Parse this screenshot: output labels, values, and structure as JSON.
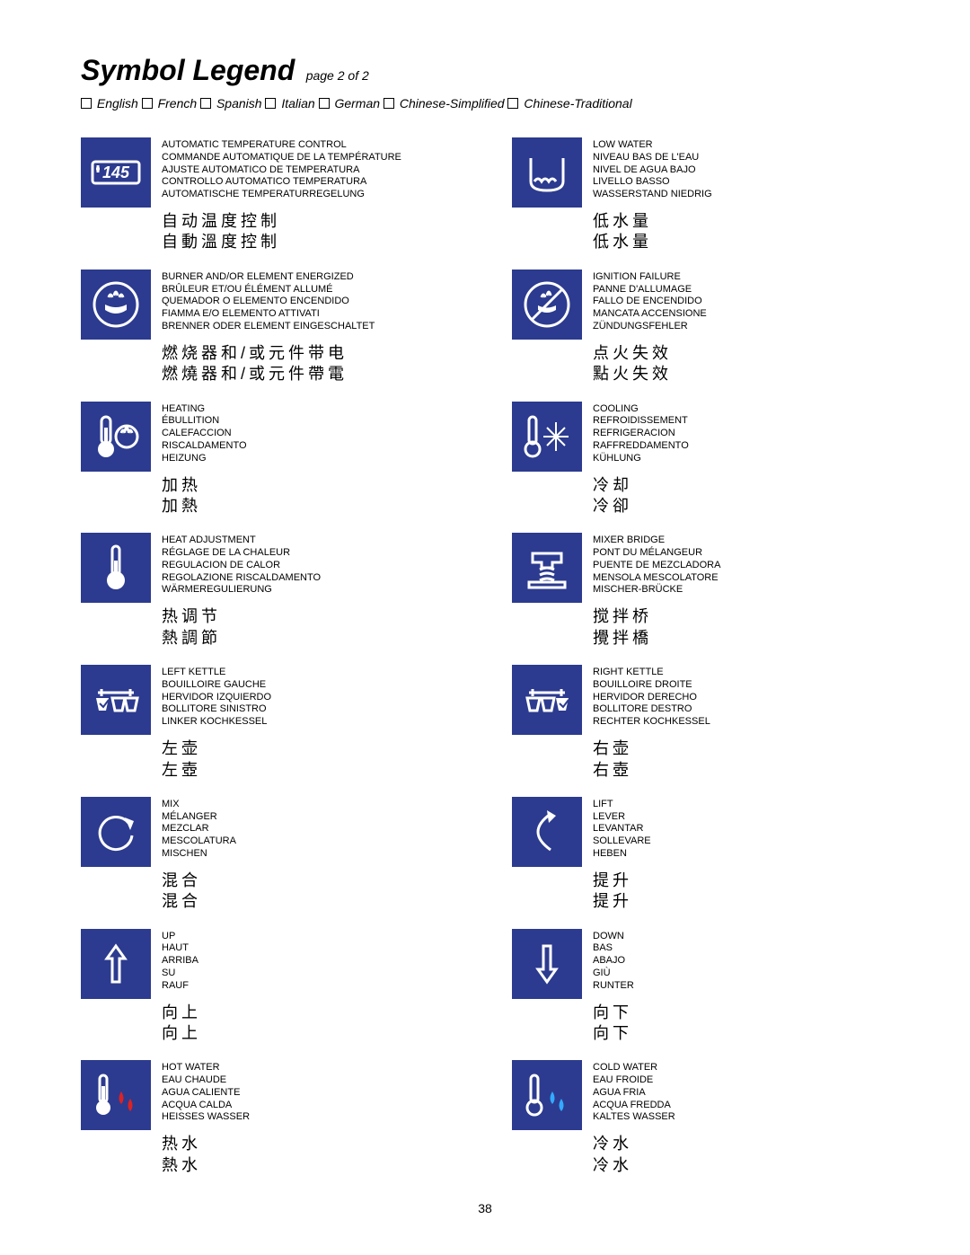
{
  "header": {
    "title": "Symbol Legend",
    "page_indicator": "page 2  of 2",
    "languages": [
      "English",
      "French",
      "Spanish",
      "Italian",
      "German",
      "Chinese-Simplified",
      "Chinese-Traditional"
    ]
  },
  "page_number": "38",
  "colors": {
    "icon_bg": "#2c3b8f",
    "icon_fg": "#ffffff",
    "text": "#000000"
  },
  "left": [
    {
      "icon": "temp-145",
      "langs": [
        "AUTOMATIC TEMPERATURE CONTROL",
        "COMMANDE AUTOMATIQUE DE LA TEMPÉRATURE",
        "AJUSTE AUTOMATICO DE TEMPERATURA",
        "CONTROLLO AUTOMATICO TEMPERATURA",
        "AUTOMATISCHE TEMPERATURREGELUNG"
      ],
      "zh_s": "自动温度控制",
      "zh_t": "自動溫度控制"
    },
    {
      "icon": "burner-on",
      "langs": [
        "BURNER AND/OR ELEMENT ENERGIZED",
        "BRÛLEUR ET/OU ÉLÉMENT ALLUMÉ",
        "QUEMADOR O ELEMENTO ENCENDIDO",
        "FIAMMA E/O ELEMENTO ATTIVATI",
        "BRENNER ODER ELEMENT EINGESCHALTET"
      ],
      "zh_s": "燃烧器和/或元件带电",
      "zh_t": "燃燒器和/或元件帶電"
    },
    {
      "icon": "heating",
      "langs": [
        "HEATING",
        "ÉBULLITION",
        "CALEFACCION",
        "RISCALDAMENTO",
        "HEIZUNG"
      ],
      "zh_s": "加热",
      "zh_t": "加熱"
    },
    {
      "icon": "heat-adjust",
      "langs": [
        "HEAT ADJUSTMENT",
        "RÉGLAGE DE LA CHALEUR",
        "REGULACION DE CALOR",
        "REGOLAZIONE RISCALDAMENTO",
        "WÄRMEREGULIERUNG"
      ],
      "zh_s": "热调节",
      "zh_t": "熱調節"
    },
    {
      "icon": "left-kettle",
      "langs": [
        "LEFT KETTLE",
        "BOUILLOIRE GAUCHE",
        "HERVIDOR IZQUIERDO",
        "BOLLITORE SINISTRO",
        "LINKER KOCHKESSEL"
      ],
      "zh_s": "左壶",
      "zh_t": "左壺"
    },
    {
      "icon": "mix",
      "langs": [
        "MIX",
        "MÉLANGER",
        "MEZCLAR",
        "MESCOLATURA",
        "MISCHEN"
      ],
      "zh_s": "混合",
      "zh_t": "混合"
    },
    {
      "icon": "up",
      "langs": [
        "UP",
        "HAUT",
        "ARRIBA",
        "SU",
        "RAUF"
      ],
      "zh_s": "向上",
      "zh_t": "向上"
    },
    {
      "icon": "hot-water",
      "langs": [
        "HOT WATER",
        "EAU CHAUDE",
        "AGUA CALIENTE",
        "ACQUA CALDA",
        "HEISSES WASSER"
      ],
      "zh_s": "热水",
      "zh_t": "熱水"
    }
  ],
  "right": [
    {
      "icon": "low-water",
      "langs": [
        "LOW WATER",
        "NIVEAU BAS DE L'EAU",
        "NIVEL DE AGUA BAJO",
        "LIVELLO BASSO",
        "WASSERSTAND NIEDRIG"
      ],
      "zh_s": "低水量",
      "zh_t": "低水量"
    },
    {
      "icon": "ignition-fail",
      "langs": [
        "IGNITION FAILURE",
        "PANNE D'ALLUMAGE",
        "FALLO DE ENCENDIDO",
        "MANCATA ACCENSIONE",
        "ZÜNDUNGSFEHLER"
      ],
      "zh_s": "点火失效",
      "zh_t": "點火失效"
    },
    {
      "icon": "cooling",
      "langs": [
        "COOLING",
        "REFROIDISSEMENT",
        "REFRIGERACION",
        "RAFFREDDAMENTO",
        "KÜHLUNG"
      ],
      "zh_s": "冷却",
      "zh_t": "冷卻"
    },
    {
      "icon": "mixer-bridge",
      "langs": [
        "MIXER BRIDGE",
        "PONT DU MÉLANGEUR",
        "PUENTE DE MEZCLADORA",
        "MENSOLA MESCOLATORE",
        "MISCHER-BRÜCKE"
      ],
      "zh_s": "搅拌桥",
      "zh_t": "攪拌橋"
    },
    {
      "icon": "right-kettle",
      "langs": [
        "RIGHT KETTLE",
        "BOUILLOIRE DROITE",
        "HERVIDOR DERECHO",
        "BOLLITORE DESTRO",
        "RECHTER KOCHKESSEL"
      ],
      "zh_s": "右壶",
      "zh_t": "右壺"
    },
    {
      "icon": "lift",
      "langs": [
        "LIFT",
        "LEVER",
        "LEVANTAR",
        "SOLLEVARE",
        "HEBEN"
      ],
      "zh_s": "提升",
      "zh_t": "提升"
    },
    {
      "icon": "down",
      "langs": [
        "DOWN",
        "BAS",
        "ABAJO",
        "GIÙ",
        "RUNTER"
      ],
      "zh_s": "向下",
      "zh_t": "向下"
    },
    {
      "icon": "cold-water",
      "langs": [
        "COLD WATER",
        "EAU FROIDE",
        "AGUA FRIA",
        "ACQUA FREDDA",
        "KALTES WASSER"
      ],
      "zh_s": "冷水",
      "zh_t": "冷水"
    }
  ]
}
